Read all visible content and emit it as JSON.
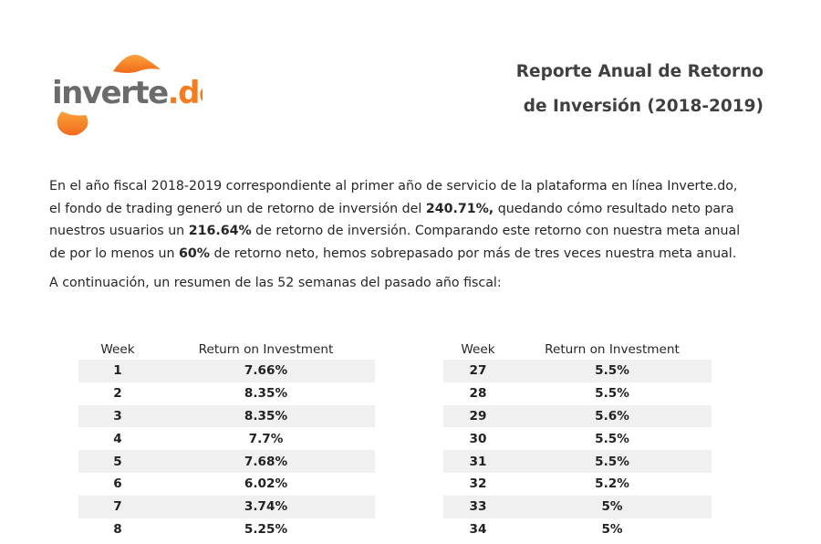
{
  "logo": {
    "text_dark": "inverte",
    "text_orange": ".do",
    "accent_color": "#f47c20",
    "text_color": "#6b6b6b"
  },
  "report": {
    "title_line1": "Reporte Anual de Retorno",
    "title_line2": "de Inversión (2018-2019)"
  },
  "intro": {
    "part1": "En el año fiscal 2018-2019 correspondiente al primer año de servicio de la plataforma en línea Inverte.do,",
    "part2": "el fondo de trading generó un de retorno de inversión del ",
    "gross_return": "240.71%,",
    "part3": " quedando cómo resultado neto para",
    "part4": "nuestros usuarios un ",
    "net_return": "216.64%",
    "part5": " de retorno de inversión. Comparando este retorno con nuestra meta anual",
    "part6": "de por lo menos un ",
    "goal": "60%",
    "part7": " de retorno neto, hemos sobrepasado por más de tres veces nuestra meta anual."
  },
  "summary_text": "A continuación, un resumen de las 52 semanas del pasado año fiscal:",
  "tables": {
    "left": {
      "headers": [
        "Week",
        "Return on Investment"
      ],
      "rows": [
        [
          "1",
          "7.66%"
        ],
        [
          "2",
          "8.35%"
        ],
        [
          "3",
          "8.35%"
        ],
        [
          "4",
          "7.7%"
        ],
        [
          "5",
          "7.68%"
        ],
        [
          "6",
          "6.02%"
        ],
        [
          "7",
          "3.74%"
        ],
        [
          "8",
          "5.25%"
        ]
      ]
    },
    "right": {
      "headers": [
        "Week",
        "Return on Investment"
      ],
      "rows": [
        [
          "27",
          "5.5%"
        ],
        [
          "28",
          "5.5%"
        ],
        [
          "29",
          "5.6%"
        ],
        [
          "30",
          "5.5%"
        ],
        [
          "31",
          "5.5%"
        ],
        [
          "32",
          "5.2%"
        ],
        [
          "33",
          "5%"
        ],
        [
          "34",
          "5%"
        ]
      ]
    }
  }
}
